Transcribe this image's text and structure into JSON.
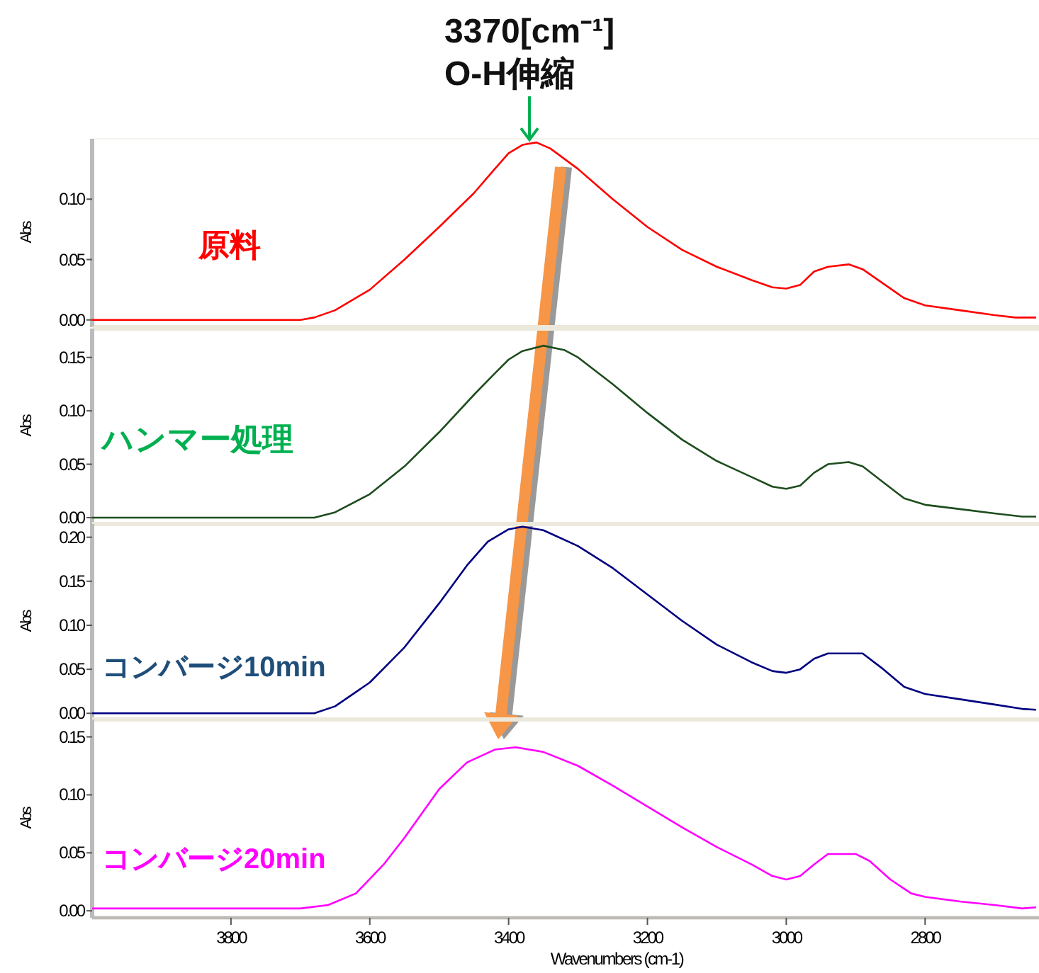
{
  "chart_data": [
    {
      "type": "line",
      "ylabel": "Abs",
      "xlim": [
        4000,
        2640
      ],
      "ylim": [
        -0.006,
        0.15
      ],
      "yticks": [
        {
          "value": 0,
          "label": "0.00"
        },
        {
          "value": 0.05,
          "label": "0.05"
        },
        {
          "value": 0.1,
          "label": "0.10"
        }
      ],
      "tick_labels": "y",
      "x": [
        4000,
        3700,
        3680,
        3650,
        3600,
        3550,
        3500,
        3450,
        3420,
        3400,
        3380,
        3360,
        3340,
        3300,
        3250,
        3200,
        3150,
        3100,
        3050,
        3020,
        3000,
        2980,
        2960,
        2940,
        2910,
        2890,
        2860,
        2830,
        2800,
        2750,
        2700,
        2670,
        2640
      ],
      "series": [
        {
          "name": "原料",
          "color": "#ff0000",
          "values": [
            0,
            0,
            0.002,
            0.008,
            0.025,
            0.05,
            0.077,
            0.105,
            0.125,
            0.138,
            0.145,
            0.147,
            0.142,
            0.125,
            0.1,
            0.077,
            0.058,
            0.044,
            0.033,
            0.027,
            0.026,
            0.029,
            0.04,
            0.044,
            0.046,
            0.042,
            0.03,
            0.018,
            0.012,
            0.008,
            0.004,
            0.002,
            0.002
          ]
        }
      ],
      "annotations": [
        {
          "text": "3370[cm⁻¹]\nO-H伸縮",
          "x": 3370,
          "y": 0.147
        }
      ]
    },
    {
      "type": "line",
      "ylabel": "Abs",
      "xlim": [
        4000,
        2640
      ],
      "ylim": [
        -0.006,
        0.177
      ],
      "yticks": [
        {
          "value": 0,
          "label": "0.00"
        },
        {
          "value": 0.05,
          "label": "0.05"
        },
        {
          "value": 0.1,
          "label": "0.10"
        },
        {
          "value": 0.15,
          "label": "0.15"
        }
      ],
      "tick_labels": "y",
      "x": [
        4000,
        3680,
        3650,
        3600,
        3550,
        3500,
        3450,
        3420,
        3400,
        3380,
        3350,
        3320,
        3300,
        3250,
        3200,
        3150,
        3100,
        3050,
        3020,
        3000,
        2980,
        2960,
        2940,
        2910,
        2890,
        2860,
        2830,
        2800,
        2750,
        2700,
        2660,
        2640
      ],
      "series": [
        {
          "name": "ハンマー処理",
          "color": "#1e4d1e",
          "values": [
            0,
            0,
            0.005,
            0.022,
            0.048,
            0.08,
            0.115,
            0.135,
            0.148,
            0.156,
            0.161,
            0.157,
            0.15,
            0.125,
            0.098,
            0.073,
            0.053,
            0.038,
            0.029,
            0.027,
            0.03,
            0.042,
            0.05,
            0.052,
            0.048,
            0.033,
            0.018,
            0.012,
            0.008,
            0.004,
            0.001,
            0.001
          ]
        }
      ]
    },
    {
      "type": "line",
      "ylabel": "Abs",
      "xlim": [
        4000,
        2640
      ],
      "ylim": [
        -0.007,
        0.215
      ],
      "yticks": [
        {
          "value": 0,
          "label": "0.00"
        },
        {
          "value": 0.05,
          "label": "0.05"
        },
        {
          "value": 0.1,
          "label": "0.10"
        },
        {
          "value": 0.15,
          "label": "0.15"
        },
        {
          "value": 0.2,
          "label": "0.20"
        }
      ],
      "tick_labels": "y",
      "x": [
        4000,
        3680,
        3650,
        3600,
        3550,
        3500,
        3460,
        3430,
        3400,
        3380,
        3350,
        3300,
        3250,
        3200,
        3150,
        3100,
        3050,
        3020,
        3000,
        2980,
        2960,
        2940,
        2890,
        2860,
        2830,
        2800,
        2750,
        2700,
        2660,
        2640
      ],
      "series": [
        {
          "name": "コンバージ10min",
          "color": "#000080",
          "values": [
            0,
            0,
            0.008,
            0.035,
            0.075,
            0.125,
            0.168,
            0.195,
            0.209,
            0.212,
            0.208,
            0.19,
            0.165,
            0.135,
            0.105,
            0.078,
            0.058,
            0.048,
            0.046,
            0.05,
            0.062,
            0.068,
            0.068,
            0.05,
            0.03,
            0.022,
            0.016,
            0.01,
            0.005,
            0.004
          ]
        }
      ]
    },
    {
      "type": "line",
      "ylabel": "Abs",
      "xlabel": "Wavenumbers (cm-1)",
      "xlim": [
        4000,
        2640
      ],
      "ylim": [
        -0.006,
        0.165
      ],
      "xticks": [
        3800,
        3600,
        3400,
        3200,
        3000,
        2800
      ],
      "yticks": [
        {
          "value": 0,
          "label": "0.00"
        },
        {
          "value": 0.05,
          "label": "0.05"
        },
        {
          "value": 0.1,
          "label": "0.10"
        },
        {
          "value": 0.15,
          "label": "0.15"
        }
      ],
      "x": [
        4000,
        3700,
        3660,
        3620,
        3580,
        3550,
        3500,
        3460,
        3420,
        3390,
        3350,
        3300,
        3250,
        3200,
        3150,
        3100,
        3050,
        3020,
        3000,
        2980,
        2960,
        2940,
        2900,
        2880,
        2850,
        2820,
        2800,
        2750,
        2700,
        2660,
        2640
      ],
      "series": [
        {
          "name": "コンバージ20min",
          "color": "#ff00ff",
          "values": [
            0.002,
            0.002,
            0.005,
            0.015,
            0.04,
            0.063,
            0.105,
            0.128,
            0.139,
            0.141,
            0.137,
            0.125,
            0.108,
            0.09,
            0.072,
            0.055,
            0.04,
            0.03,
            0.027,
            0.03,
            0.04,
            0.049,
            0.049,
            0.043,
            0.027,
            0.015,
            0.012,
            0.008,
            0.005,
            0.002,
            0.003
          ]
        }
      ]
    }
  ]
}
